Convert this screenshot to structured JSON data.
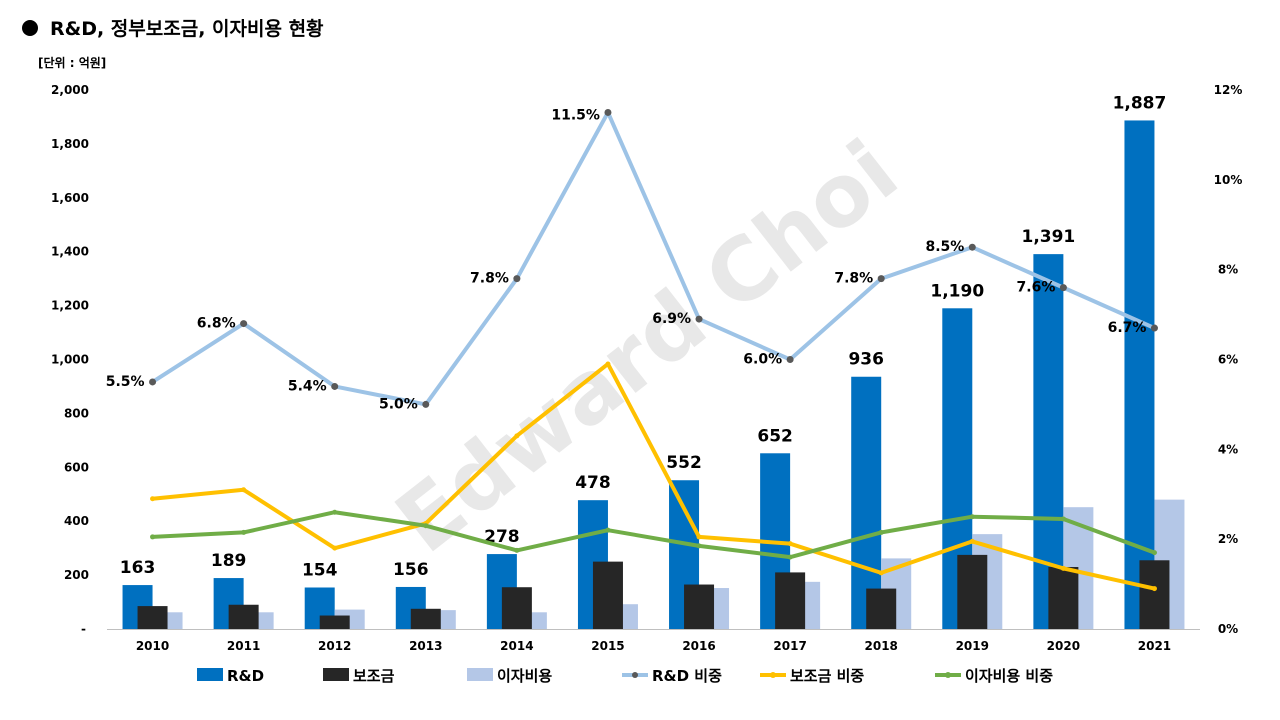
{
  "title": "R&D, 정부보조금, 이자비용 현황",
  "unit_label": "[단위 : 억원]",
  "watermark": "Edward Choi",
  "chart_data": {
    "type": "bar",
    "categories": [
      "2010",
      "2011",
      "2012",
      "2013",
      "2014",
      "2015",
      "2016",
      "2017",
      "2018",
      "2019",
      "2020",
      "2021"
    ],
    "series": [
      {
        "name": "R&D",
        "kind": "bar",
        "axis": "left",
        "color": "#0070C0",
        "values": [
          163,
          189,
          154,
          156,
          278,
          478,
          552,
          652,
          936,
          1190,
          1391,
          1887
        ],
        "labels": [
          "163",
          "189",
          "154",
          "156",
          "278",
          "478",
          "552",
          "652",
          "936",
          "1,190",
          "1,391",
          "1,887"
        ]
      },
      {
        "name": "보조금",
        "kind": "bar",
        "axis": "left",
        "color": "#262626",
        "values": [
          85,
          90,
          50,
          75,
          155,
          250,
          165,
          210,
          150,
          275,
          230,
          255
        ]
      },
      {
        "name": "이자비용",
        "kind": "bar",
        "axis": "left",
        "color": "#B4C7E7",
        "values": [
          62,
          62,
          72,
          70,
          62,
          92,
          152,
          175,
          262,
          352,
          452,
          480
        ]
      },
      {
        "name": "R&D 비중",
        "kind": "line",
        "axis": "right",
        "color": "#9DC3E6",
        "marker_color": "#595959",
        "values": [
          5.5,
          6.8,
          5.4,
          5.0,
          7.8,
          11.5,
          6.9,
          6.0,
          7.8,
          8.5,
          7.6,
          6.7
        ],
        "labels": [
          "5.5%",
          "6.8%",
          "5.4%",
          "5.0%",
          "7.8%",
          "11.5%",
          "6.9%",
          "6.0%",
          "7.8%",
          "8.5%",
          "7.6%",
          "6.7%"
        ]
      },
      {
        "name": "보조금 비중",
        "kind": "line",
        "axis": "right",
        "color": "#FFC000",
        "values": [
          2.9,
          3.1,
          1.8,
          2.35,
          4.3,
          5.9,
          2.05,
          1.9,
          1.25,
          1.95,
          1.35,
          0.9
        ]
      },
      {
        "name": "이자비용 비중",
        "kind": "line",
        "axis": "right",
        "color": "#70AD47",
        "values": [
          2.05,
          2.15,
          2.6,
          2.3,
          1.75,
          2.2,
          1.85,
          1.6,
          2.15,
          2.5,
          2.45,
          1.7
        ]
      }
    ],
    "y_left": {
      "min": 0,
      "max": 2000,
      "ticks": [
        "-",
        "200",
        "400",
        "600",
        "800",
        "1,000",
        "1,200",
        "1,400",
        "1,600",
        "1,800",
        "2,000"
      ]
    },
    "y_right": {
      "min": 0,
      "max": 12,
      "ticks": [
        "0%",
        "2%",
        "4%",
        "6%",
        "8%",
        "10%",
        "12%"
      ]
    },
    "grid": false,
    "legend_position": "bottom"
  }
}
